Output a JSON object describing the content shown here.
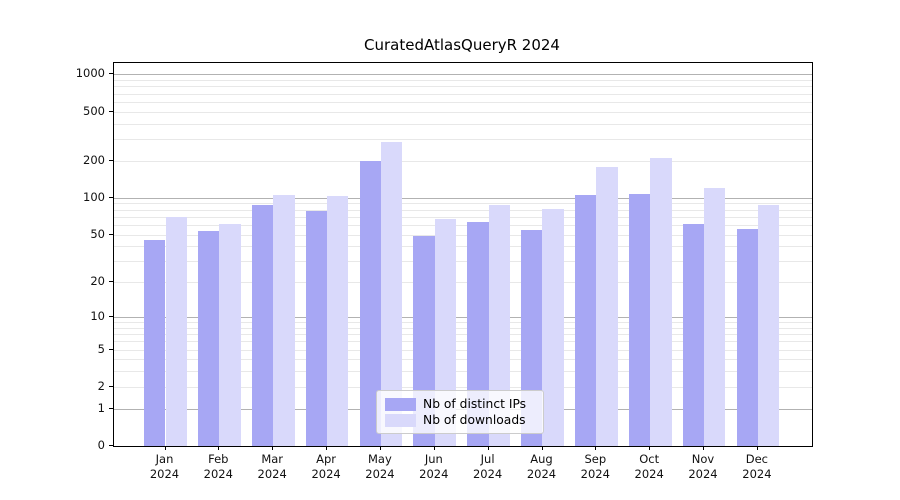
{
  "title": "CuratedAtlasQueryR 2024",
  "chart_data": {
    "type": "bar",
    "title": "CuratedAtlasQueryR 2024",
    "categories": [
      "Jan 2024",
      "Feb 2024",
      "Mar 2024",
      "Apr 2024",
      "May 2024",
      "Jun 2024",
      "Jul 2024",
      "Aug 2024",
      "Sep 2024",
      "Oct 2024",
      "Nov 2024",
      "Dec 2024"
    ],
    "x_tick_line1": [
      "Jan",
      "Feb",
      "Mar",
      "Apr",
      "May",
      "Jun",
      "Jul",
      "Aug",
      "Sep",
      "Oct",
      "Nov",
      "Dec"
    ],
    "x_tick_line2": [
      "2024",
      "2024",
      "2024",
      "2024",
      "2024",
      "2024",
      "2024",
      "2024",
      "2024",
      "2024",
      "2024",
      "2024"
    ],
    "series": [
      {
        "name": "Nb of distinct IPs",
        "color": "#a7a7f4",
        "values": [
          45,
          53,
          88,
          78,
          198,
          49,
          63,
          54,
          106,
          108,
          61,
          55
        ]
      },
      {
        "name": "Nb of downloads",
        "color": "#d9d9fb",
        "values": [
          70,
          61,
          105,
          103,
          283,
          67,
          87,
          81,
          178,
          212,
          120,
          87
        ]
      }
    ],
    "y_scale": "log1p",
    "y_ticks": [
      0,
      1,
      2,
      5,
      10,
      20,
      50,
      100,
      200,
      500,
      1000
    ],
    "y_grid_major": [
      1,
      10,
      100,
      1000
    ],
    "y_grid_minor": [
      2,
      3,
      4,
      5,
      6,
      7,
      8,
      9,
      20,
      30,
      40,
      50,
      60,
      70,
      80,
      90,
      200,
      300,
      400,
      500,
      600,
      700,
      800,
      900
    ],
    "ylim": [
      0,
      1234
    ],
    "xlabel": "",
    "ylabel": "",
    "legend_position": "lower center",
    "grid": "on",
    "colors": {
      "grid_major": "#b2b2b2",
      "grid_minor": "#e8e8e8",
      "spine": "#000000",
      "text": "#111111"
    }
  }
}
